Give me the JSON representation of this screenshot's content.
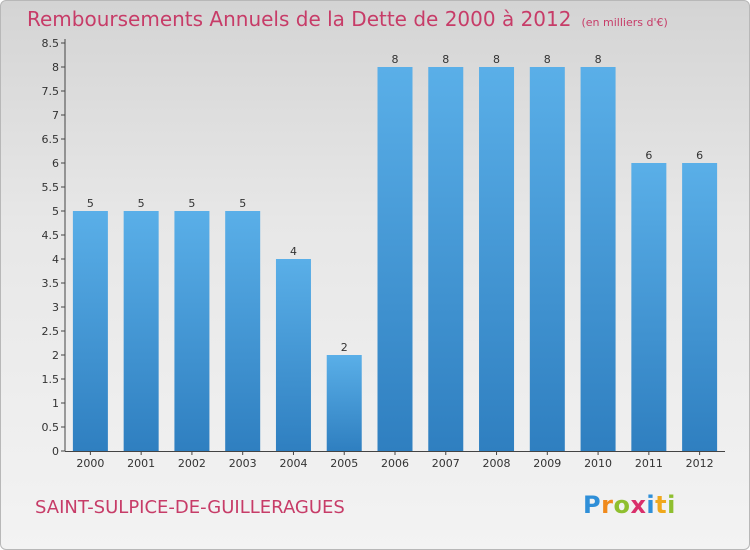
{
  "header": {
    "title": "Remboursements Annuels de la Dette de 2000 à 2012",
    "unit": "(en milliers d'€)"
  },
  "footer": {
    "commune": "SAINT-SULPICE-DE-GUILLERAGUES",
    "logo_letters": [
      "P",
      "r",
      "o",
      "x",
      "i",
      "t",
      "i"
    ],
    "logo_colors": [
      "#2f8fd8",
      "#f08a1c",
      "#8fbf2f",
      "#d92f6b",
      "#2f8fd8",
      "#f0a81c",
      "#8fbf2f"
    ]
  },
  "chart_data": {
    "type": "bar",
    "categories": [
      "2000",
      "2001",
      "2002",
      "2003",
      "2004",
      "2005",
      "2006",
      "2007",
      "2008",
      "2009",
      "2010",
      "2011",
      "2012"
    ],
    "values": [
      5,
      5,
      5,
      5,
      4,
      2,
      8,
      8,
      8,
      8,
      8,
      6,
      6
    ],
    "data_labels": [
      "5",
      "5",
      "5",
      "5",
      "4",
      "2",
      "8",
      "8",
      "8",
      "8",
      "8",
      "6",
      "6"
    ],
    "yticks": [
      0,
      0.5,
      1,
      1.5,
      2,
      2.5,
      3,
      3.5,
      4,
      4.5,
      5,
      5.5,
      6,
      6.5,
      7,
      7.5,
      8,
      8.5
    ],
    "ytick_labels": [
      "0",
      "0.5",
      "1",
      "1.5",
      "2",
      "2.5",
      "3",
      "3.5",
      "4",
      "4.5",
      "5",
      "5.5",
      "6",
      "6.5",
      "7",
      "7.5",
      "8",
      "8.5"
    ],
    "ylim": [
      0,
      8.5
    ],
    "grid": false,
    "bar_color_top": "#5aafe8",
    "bar_color_bottom": "#2f7fc0",
    "label_color": "#333333"
  }
}
